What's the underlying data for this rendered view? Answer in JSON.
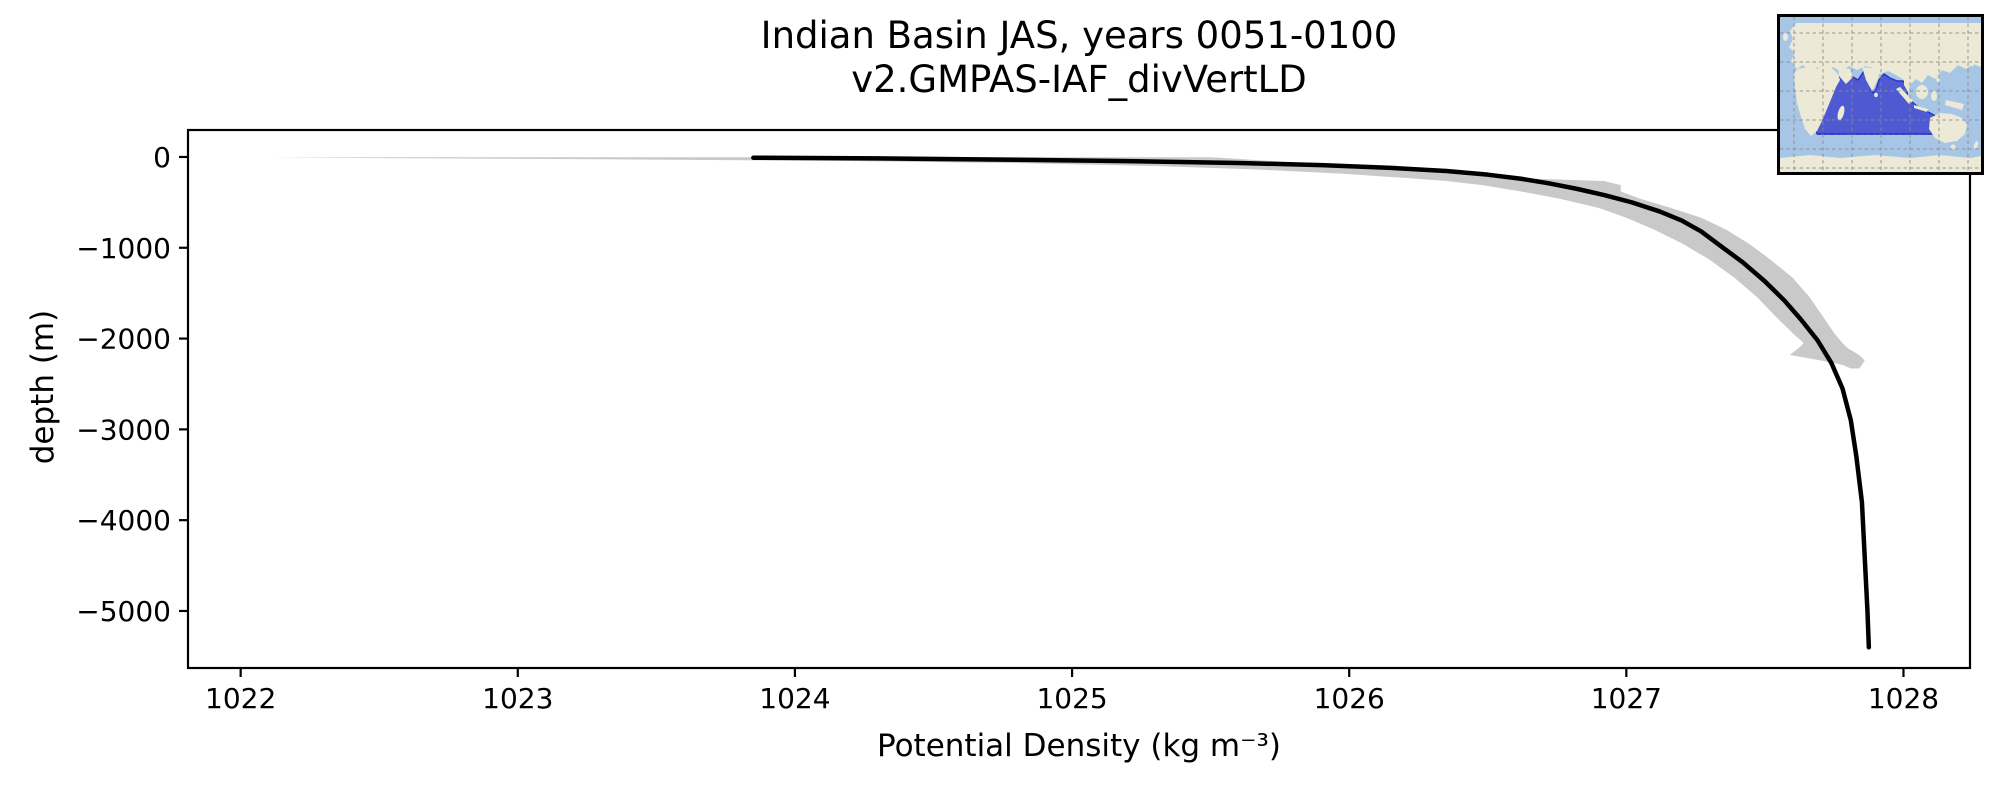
{
  "title": {
    "line1": "Indian Basin JAS, years 0051-0100",
    "line2": "v2.GMPAS-IAF_divVertLD"
  },
  "colors": {
    "background": "#ffffff",
    "profile_line": "#000000",
    "std_band": "#c9c9c9",
    "axis": "#000000",
    "text": "#000000"
  },
  "inset_map": {
    "region_name": "Indian Ocean basin",
    "colors": {
      "ocean": "#a7c5e5",
      "land": "#ece9d6",
      "region_fill": "#4f5ad2",
      "region_outline": "#2a33c9",
      "grid": "#8a8a8a",
      "border": "#000000"
    }
  },
  "chart_data": {
    "type": "line",
    "title": "Indian Basin JAS, years 0051-0100",
    "subtitle": "v2.GMPAS-IAF_divVertLD",
    "xlabel": "Potential Density (kg m⁻³)",
    "ylabel": "depth (m)",
    "xlim": [
      1021.81,
      1028.24
    ],
    "ylim": [
      -5628,
      297
    ],
    "grid": false,
    "xticks": [
      1022,
      1023,
      1024,
      1025,
      1026,
      1027,
      1028
    ],
    "xtick_labels": [
      "1022",
      "1023",
      "1024",
      "1025",
      "1026",
      "1027",
      "1028"
    ],
    "yticks": [
      0,
      -1000,
      -2000,
      -3000,
      -4000,
      -5000
    ],
    "ytick_labels": [
      "0",
      "−1000",
      "−2000",
      "−3000",
      "−4000",
      "−5000"
    ],
    "series": [
      {
        "name": "mean potential density profile",
        "color": "#000000",
        "points": [
          [
            1023.85,
            -8
          ],
          [
            1024.3,
            -16
          ],
          [
            1024.8,
            -30
          ],
          [
            1025.2,
            -46
          ],
          [
            1025.6,
            -66
          ],
          [
            1025.9,
            -90
          ],
          [
            1026.15,
            -120
          ],
          [
            1026.35,
            -155
          ],
          [
            1026.5,
            -195
          ],
          [
            1026.62,
            -240
          ],
          [
            1026.72,
            -290
          ],
          [
            1026.82,
            -350
          ],
          [
            1026.92,
            -420
          ],
          [
            1027.02,
            -500
          ],
          [
            1027.12,
            -600
          ],
          [
            1027.2,
            -700
          ],
          [
            1027.27,
            -820
          ],
          [
            1027.34,
            -980
          ],
          [
            1027.42,
            -1160
          ],
          [
            1027.5,
            -1370
          ],
          [
            1027.57,
            -1580
          ],
          [
            1027.63,
            -1790
          ],
          [
            1027.69,
            -2020
          ],
          [
            1027.74,
            -2270
          ],
          [
            1027.78,
            -2550
          ],
          [
            1027.81,
            -2900
          ],
          [
            1027.83,
            -3300
          ],
          [
            1027.85,
            -3800
          ],
          [
            1027.86,
            -4400
          ],
          [
            1027.87,
            -5000
          ],
          [
            1027.875,
            -5400
          ]
        ]
      }
    ],
    "band": {
      "name": "std-dev envelope",
      "color": "#c9c9c9",
      "points_depth_lo_hi": [
        [
          -3,
          1022.1,
          1025.5
        ],
        [
          -12,
          1022.45,
          1025.55
        ],
        [
          -25,
          1023.3,
          1025.62
        ],
        [
          -45,
          1024.2,
          1025.72
        ],
        [
          -70,
          1024.85,
          1025.85
        ],
        [
          -100,
          1025.3,
          1026.0
        ],
        [
          -140,
          1025.68,
          1026.18
        ],
        [
          -185,
          1025.98,
          1026.38
        ],
        [
          -235,
          1026.22,
          1026.62
        ],
        [
          -265,
          1026.35,
          1026.92
        ],
        [
          -310,
          1026.48,
          1026.98
        ],
        [
          -380,
          1026.62,
          1026.98
        ],
        [
          -460,
          1026.76,
          1027.05
        ],
        [
          -560,
          1026.9,
          1027.16
        ],
        [
          -670,
          1027.0,
          1027.27
        ],
        [
          -800,
          1027.1,
          1027.36
        ],
        [
          -950,
          1027.2,
          1027.44
        ],
        [
          -1130,
          1027.3,
          1027.52
        ],
        [
          -1330,
          1027.39,
          1027.6
        ],
        [
          -1540,
          1027.47,
          1027.66
        ],
        [
          -1760,
          1027.54,
          1027.71
        ],
        [
          -1940,
          1027.6,
          1027.75
        ],
        [
          -2050,
          1027.64,
          1027.78
        ],
        [
          -2110,
          1027.62,
          1027.8
        ],
        [
          -2180,
          1027.59,
          1027.84
        ],
        [
          -2240,
          1027.7,
          1027.86
        ],
        [
          -2290,
          1027.78,
          1027.85
        ],
        [
          -2330,
          1027.81,
          1027.84
        ]
      ]
    }
  }
}
